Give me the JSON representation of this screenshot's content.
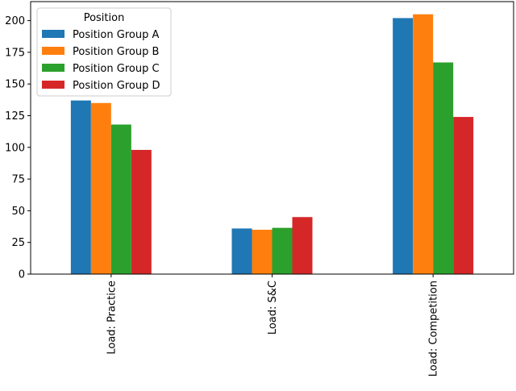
{
  "chart_data": {
    "type": "bar",
    "title": "",
    "xlabel": "",
    "ylabel": "",
    "categories": [
      "Load: Practice",
      "Load: S&C",
      "Load: Competition"
    ],
    "series": [
      {
        "name": "Position Group A",
        "color": "#1f77b4",
        "values": [
          137,
          36,
          202
        ]
      },
      {
        "name": "Position Group B",
        "color": "#ff7f0e",
        "values": [
          135,
          35,
          205
        ]
      },
      {
        "name": "Position Group C",
        "color": "#2ca02c",
        "values": [
          118,
          36.5,
          167
        ]
      },
      {
        "name": "Position Group D",
        "color": "#d62728",
        "values": [
          98,
          45,
          124
        ]
      }
    ],
    "ylim": [
      0,
      215
    ],
    "yticks": [
      0,
      25,
      50,
      75,
      100,
      125,
      150,
      175,
      200
    ],
    "grid": false,
    "legend": {
      "title": "Position",
      "placement": "upper-left"
    }
  }
}
